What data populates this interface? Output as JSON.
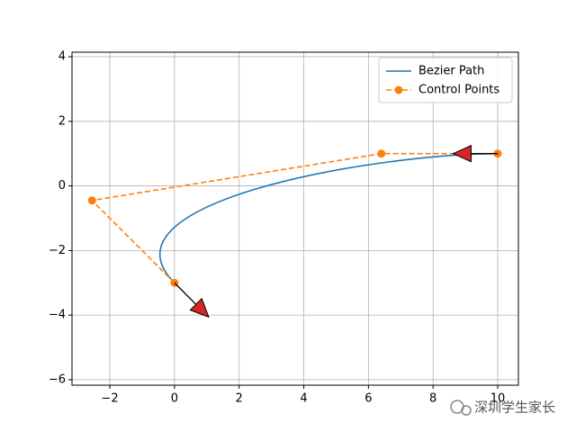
{
  "chart_data": {
    "type": "line",
    "series": [
      {
        "name": "Bezier Path",
        "kind": "bezier",
        "color": "#1f77b4",
        "x": [
          0,
          -2.55,
          6.4,
          10
        ],
        "y": [
          -3,
          -0.45,
          1.0,
          1.0
        ]
      },
      {
        "name": "Control Points",
        "kind": "dashed-markers",
        "color": "#ff7f0e",
        "x": [
          0,
          -2.55,
          6.4,
          10
        ],
        "y": [
          -3,
          -0.45,
          1.0,
          1.0
        ]
      }
    ],
    "arrows": [
      {
        "x": 0,
        "y": -3,
        "dx": 1.06,
        "dy": -1.06,
        "color": "#d62728"
      },
      {
        "x": 10,
        "y": 1,
        "dx": -1.38,
        "dy": 0,
        "color": "#d62728"
      }
    ],
    "xlim": [
      -3.17,
      10.64
    ],
    "ylim": [
      -6.17,
      4.14
    ],
    "xticks": [
      {
        "value": -2,
        "label": "−2"
      },
      0,
      2,
      4,
      6,
      8,
      10
    ],
    "yticks": [
      {
        "value": -6,
        "label": "−6"
      },
      {
        "value": -4,
        "label": "−4"
      },
      {
        "value": -2,
        "label": "−2"
      },
      0,
      2,
      4
    ],
    "grid": true,
    "legend": "upper right",
    "watermark": "深圳学生家长"
  }
}
